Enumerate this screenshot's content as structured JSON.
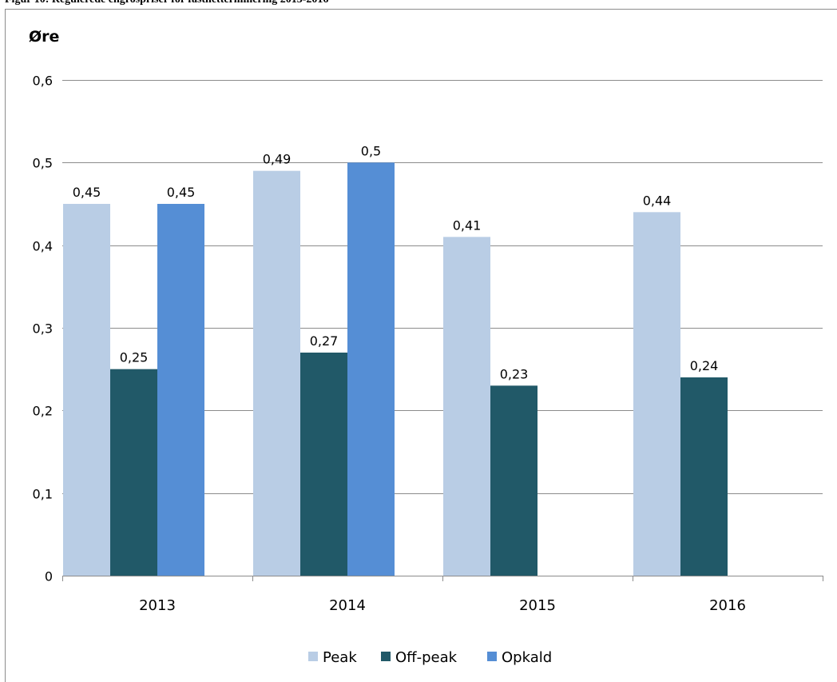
{
  "caption": "Figur 10: Regulerede engrospriser for fastnetterminering 2013-2016",
  "chart_data": {
    "type": "bar",
    "title": "",
    "ylabel": "Øre",
    "xlabel": "",
    "categories": [
      "2013",
      "2014",
      "2015",
      "2016"
    ],
    "series": [
      {
        "name": "Peak",
        "values": [
          0.45,
          0.49,
          0.41,
          0.44
        ],
        "labels": [
          "0,45",
          "0,49",
          "0,41",
          "0,44"
        ],
        "color": "#b9cde5"
      },
      {
        "name": "Off-peak",
        "values": [
          0.25,
          0.27,
          0.23,
          0.24
        ],
        "labels": [
          "0,25",
          "0,27",
          "0,23",
          "0,24"
        ],
        "color": "#215968"
      },
      {
        "name": "Opkald",
        "values": [
          0.45,
          0.5,
          null,
          null
        ],
        "labels": [
          "0,45",
          "0,5",
          "",
          ""
        ],
        "color": "#558ed5"
      }
    ],
    "ylim": [
      0,
      0.6
    ],
    "yticks": [
      0,
      0.1,
      0.2,
      0.3,
      0.4,
      0.5,
      0.6
    ],
    "ytick_labels": [
      "0",
      "0,1",
      "0,2",
      "0,3",
      "0,4",
      "0,5",
      "0,6"
    ],
    "grid": true,
    "legend_position": "bottom"
  }
}
